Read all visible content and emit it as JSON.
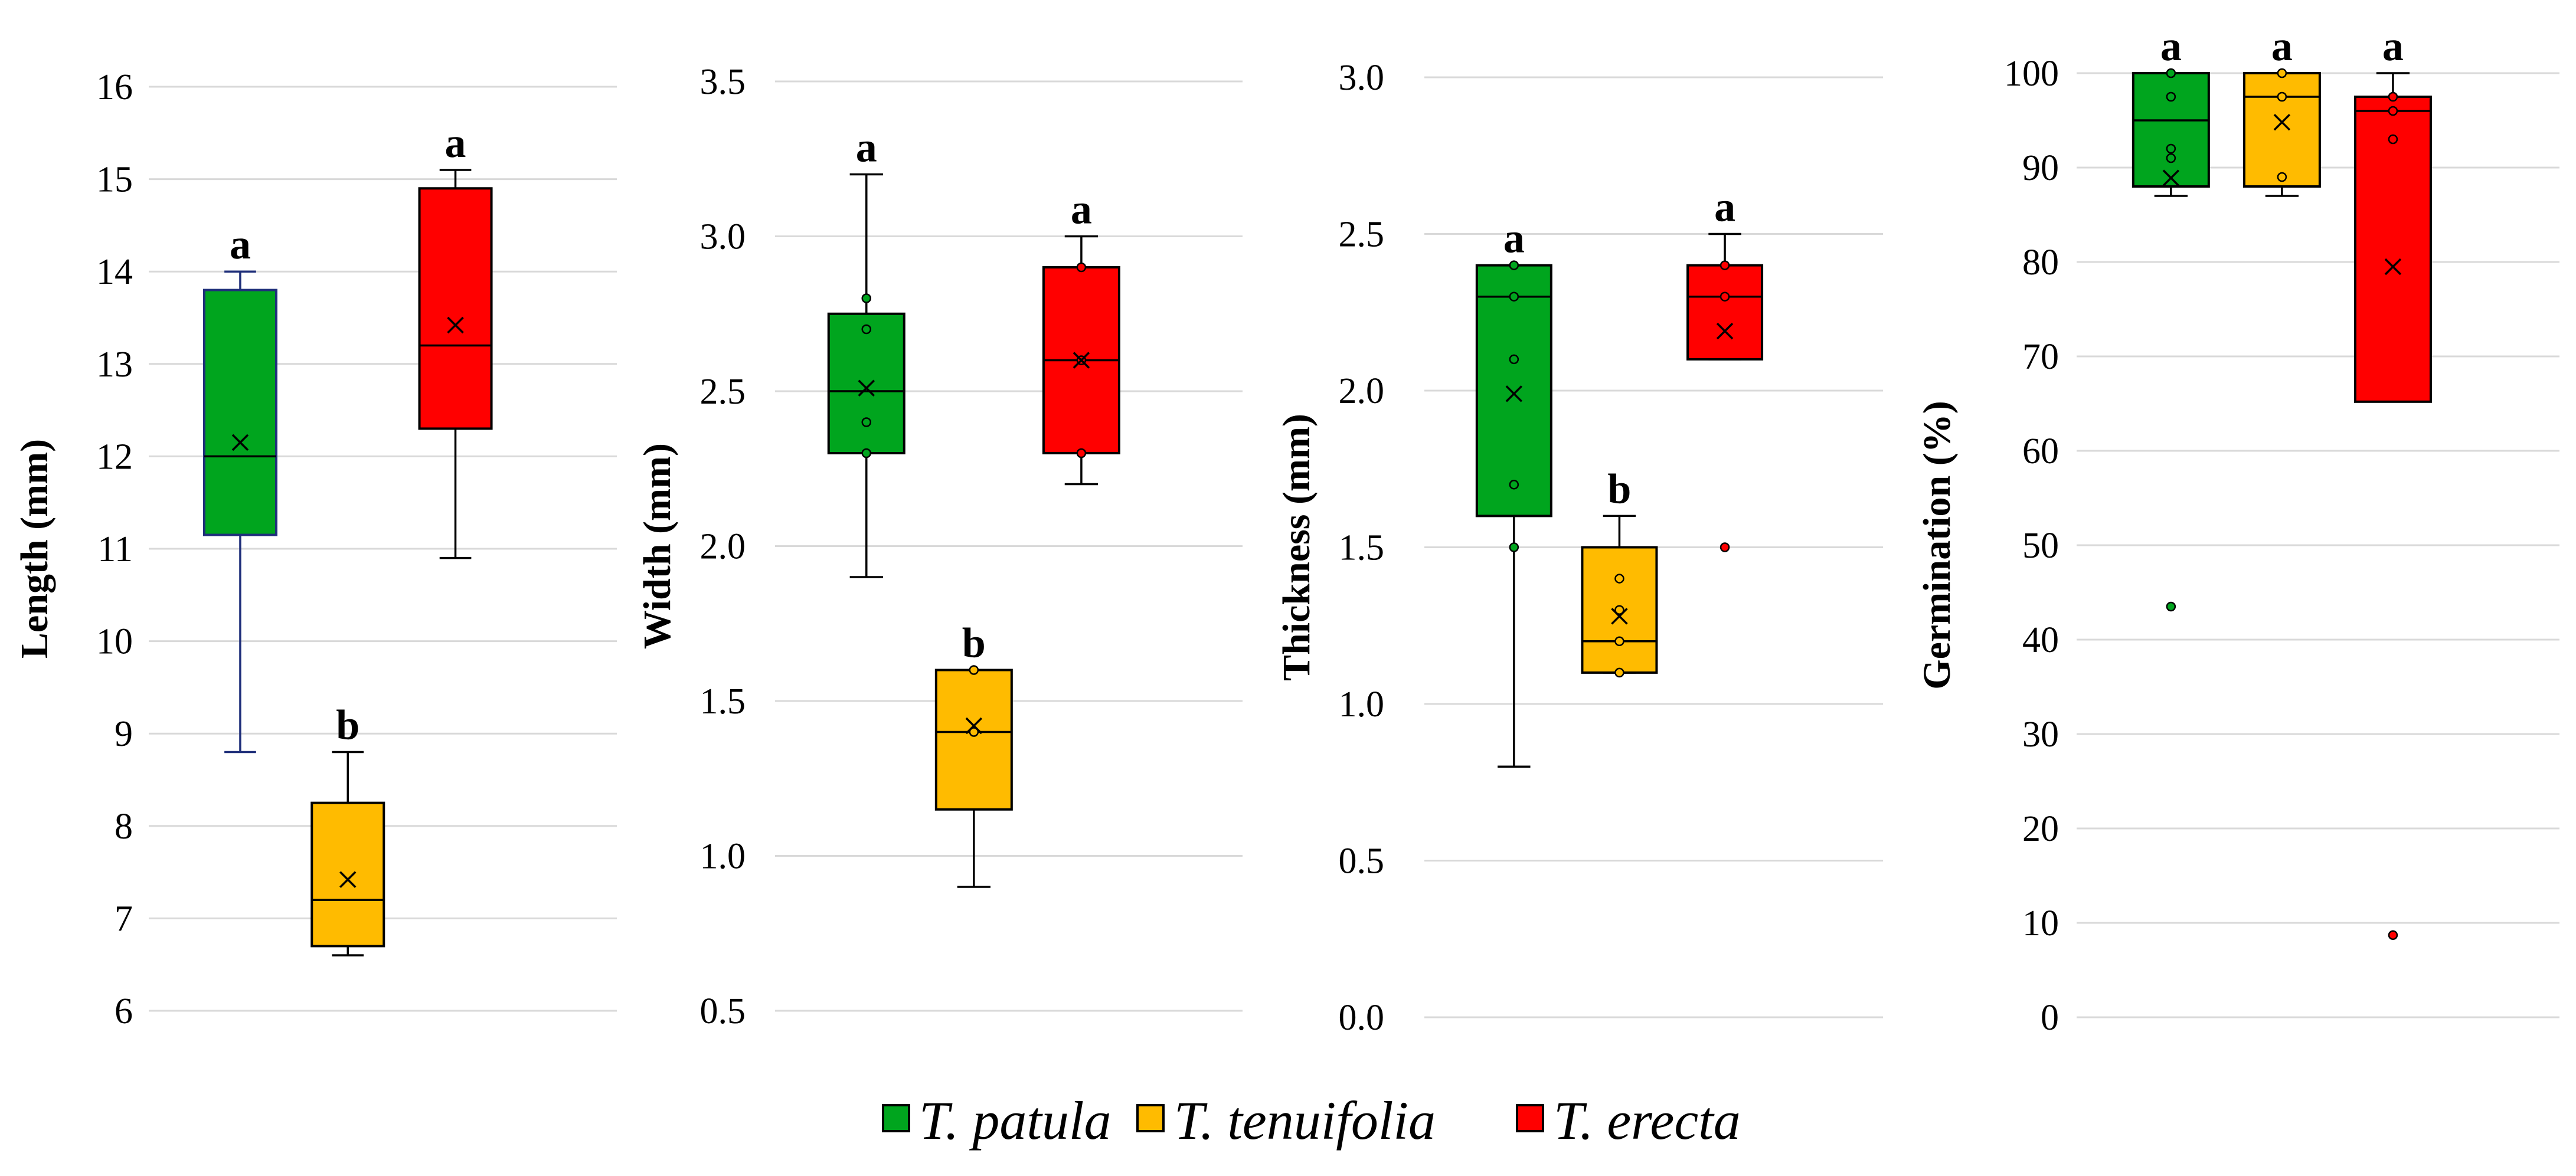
{
  "legend": [
    {
      "name": "T. patula",
      "color": "#00A51E"
    },
    {
      "name": "T. tenuifolia",
      "color": "#FFBB00"
    },
    {
      "name": "T. erecta",
      "color": "#FF0000"
    }
  ],
  "chart_data": [
    {
      "type": "box",
      "ylabel": "Length (mm)",
      "ylim": [
        6,
        16
      ],
      "yticks": [
        6,
        7,
        8,
        9,
        10,
        11,
        12,
        13,
        14,
        15,
        16
      ],
      "tick_decimals": 0,
      "grid": true,
      "series": [
        {
          "name": "T. patula",
          "color": "#00A51E",
          "border": "#1F2F7A",
          "min": 8.8,
          "q1": 11.15,
          "median": 12.0,
          "q3": 13.8,
          "max": 14.0,
          "mean": 12.15,
          "points": [],
          "outliers": [],
          "sig": "a"
        },
        {
          "name": "T. tenuifolia",
          "color": "#FFBB00",
          "border": "#000000",
          "min": 6.6,
          "q1": 6.7,
          "median": 7.2,
          "q3": 8.25,
          "max": 8.8,
          "mean": 7.42,
          "points": [],
          "outliers": [],
          "sig": "b"
        },
        {
          "name": "T. erecta",
          "color": "#FF0000",
          "border": "#000000",
          "min": 10.9,
          "q1": 12.3,
          "median": 13.2,
          "q3": 14.9,
          "max": 15.1,
          "mean": 13.42,
          "points": [],
          "outliers": [],
          "sig": "a"
        }
      ]
    },
    {
      "type": "box",
      "ylabel": "Width (mm)",
      "ylim": [
        0.5,
        3.5
      ],
      "yticks": [
        0.5,
        1.0,
        1.5,
        2.0,
        2.5,
        3.0,
        3.5
      ],
      "tick_decimals": 1,
      "grid": true,
      "series": [
        {
          "name": "T. patula",
          "color": "#00A51E",
          "border": "#000000",
          "min": 1.9,
          "q1": 2.3,
          "median": 2.5,
          "q3": 2.75,
          "max": 3.2,
          "mean": 2.51,
          "points": [
            2.3,
            2.4,
            2.7,
            2.8
          ],
          "outliers": [],
          "sig": "a"
        },
        {
          "name": "T. tenuifolia",
          "color": "#FFBB00",
          "border": "#000000",
          "min": 0.9,
          "q1": 1.15,
          "median": 1.4,
          "q3": 1.6,
          "max": 1.6,
          "mean": 1.42,
          "points": [
            1.4,
            1.6
          ],
          "outliers": [],
          "sig": "b"
        },
        {
          "name": "T. erecta",
          "color": "#FF0000",
          "border": "#000000",
          "min": 2.2,
          "q1": 2.3,
          "median": 2.6,
          "q3": 2.9,
          "max": 3.0,
          "mean": 2.6,
          "points": [
            2.3,
            2.6,
            2.9
          ],
          "outliers": [],
          "sig": "a"
        }
      ]
    },
    {
      "type": "box",
      "ylabel": "Thickness (mm)",
      "ylim": [
        0.0,
        3.0
      ],
      "yticks": [
        0.0,
        0.5,
        1.0,
        1.5,
        2.0,
        2.5,
        3.0
      ],
      "tick_decimals": 1,
      "grid": true,
      "series": [
        {
          "name": "T. patula",
          "color": "#00A51E",
          "border": "#000000",
          "min": 0.8,
          "q1": 1.6,
          "median": 2.3,
          "q3": 2.4,
          "max": 2.4,
          "mean": 1.99,
          "points": [
            1.5,
            1.7,
            2.1,
            2.3,
            2.4
          ],
          "outliers": [],
          "sig": "a"
        },
        {
          "name": "T. tenuifolia",
          "color": "#FFBB00",
          "border": "#000000",
          "min": 1.1,
          "q1": 1.1,
          "median": 1.2,
          "q3": 1.5,
          "max": 1.6,
          "mean": 1.28,
          "points": [
            1.1,
            1.2,
            1.3,
            1.4
          ],
          "outliers": [],
          "sig": "b"
        },
        {
          "name": "T. erecta",
          "color": "#FF0000",
          "border": "#000000",
          "min": 2.1,
          "q1": 2.1,
          "median": 2.3,
          "q3": 2.4,
          "max": 2.5,
          "mean": 2.19,
          "points": [
            2.3,
            2.4
          ],
          "outliers": [
            1.5
          ],
          "sig": "a"
        }
      ]
    },
    {
      "type": "box",
      "ylabel": "Germination (%)",
      "ylim": [
        0,
        100
      ],
      "yticks": [
        0,
        10,
        20,
        30,
        40,
        50,
        60,
        70,
        80,
        90,
        100
      ],
      "tick_decimals": 0,
      "grid": true,
      "series": [
        {
          "name": "T. patula",
          "color": "#00A51E",
          "border": "#000000",
          "min": 87,
          "q1": 88,
          "median": 95,
          "q3": 100,
          "max": 100,
          "mean": 88.9,
          "points": [
            91,
            92,
            97.5,
            100
          ],
          "outliers": [
            43.5
          ],
          "sig": "a"
        },
        {
          "name": "T. tenuifolia",
          "color": "#FFBB00",
          "border": "#000000",
          "min": 87,
          "q1": 88,
          "median": 97.5,
          "q3": 100,
          "max": 100,
          "mean": 94.8,
          "points": [
            89,
            97.5,
            100
          ],
          "outliers": [],
          "sig": "a"
        },
        {
          "name": "T. erecta",
          "color": "#FF0000",
          "border": "#000000",
          "min": 65.2,
          "q1": 65.2,
          "median": 96,
          "q3": 97.5,
          "max": 100,
          "mean": 79.5,
          "points": [
            93,
            96,
            97.5
          ],
          "outliers": [
            8.7
          ],
          "sig": "a"
        }
      ]
    }
  ]
}
